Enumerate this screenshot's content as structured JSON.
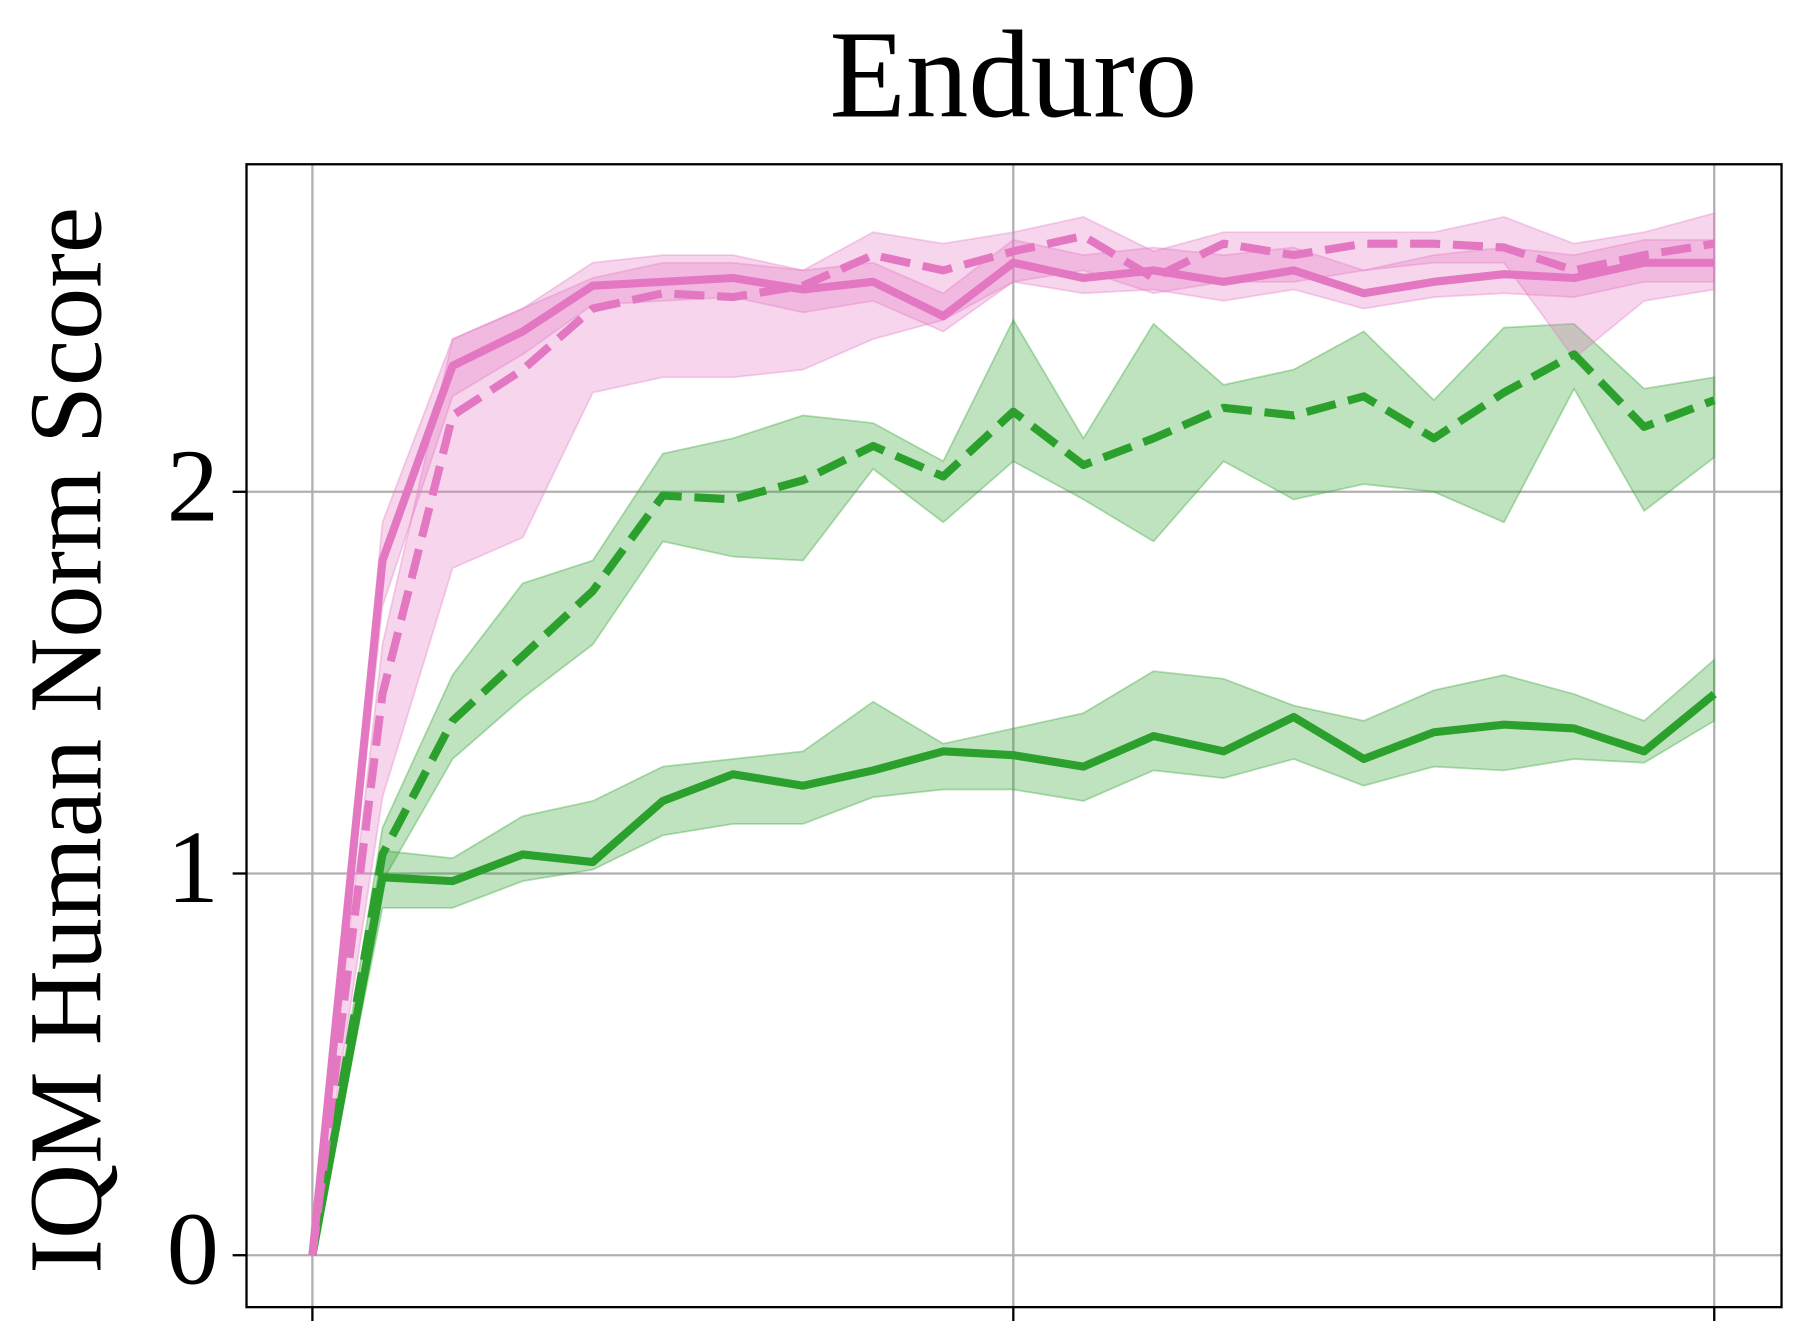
{
  "chart_data": {
    "type": "line",
    "title": "Enduro",
    "y_label": "IQM Human Norm Score",
    "x": [
      0,
      1,
      2,
      3,
      4,
      5,
      6,
      7,
      8,
      9,
      10,
      11,
      12,
      13,
      14,
      15,
      16,
      17,
      18,
      19,
      20
    ],
    "xlim": [
      -0.94,
      20.96
    ],
    "xticks": [
      0,
      10,
      20
    ],
    "ylim": [
      -0.136,
      2.858
    ],
    "yticks": [
      0,
      1,
      2
    ],
    "grid": true,
    "series": [
      {
        "color": "#2ca02c",
        "dashed": false,
        "values": [
          0,
          0.99,
          0.98,
          1.05,
          1.03,
          1.19,
          1.26,
          1.23,
          1.27,
          1.32,
          1.31,
          1.28,
          1.36,
          1.32,
          1.41,
          1.3,
          1.37,
          1.39,
          1.38,
          1.32,
          1.47
        ],
        "lower": [
          0,
          0.91,
          0.91,
          0.98,
          1.01,
          1.1,
          1.13,
          1.13,
          1.2,
          1.22,
          1.22,
          1.19,
          1.27,
          1.25,
          1.3,
          1.23,
          1.28,
          1.27,
          1.3,
          1.29,
          1.4
        ],
        "upper": [
          0,
          1.06,
          1.04,
          1.15,
          1.19,
          1.28,
          1.3,
          1.32,
          1.45,
          1.34,
          1.38,
          1.42,
          1.53,
          1.51,
          1.44,
          1.4,
          1.48,
          1.52,
          1.47,
          1.4,
          1.56
        ]
      },
      {
        "color": "#2ca02c",
        "dashed": true,
        "values": [
          0,
          1.05,
          1.4,
          1.57,
          1.74,
          1.99,
          1.98,
          2.03,
          2.12,
          2.04,
          2.21,
          2.07,
          2.14,
          2.22,
          2.2,
          2.25,
          2.14,
          2.26,
          2.36,
          2.17,
          2.24
        ],
        "lower": [
          0,
          0.98,
          1.3,
          1.46,
          1.6,
          1.87,
          1.83,
          1.82,
          2.06,
          1.92,
          2.08,
          1.98,
          1.87,
          2.08,
          1.98,
          2.02,
          2.0,
          1.92,
          2.27,
          1.95,
          2.09
        ],
        "upper": [
          0,
          1.12,
          1.52,
          1.76,
          1.82,
          2.1,
          2.14,
          2.2,
          2.18,
          2.08,
          2.45,
          2.14,
          2.44,
          2.28,
          2.32,
          2.42,
          2.24,
          2.43,
          2.44,
          2.27,
          2.3
        ]
      },
      {
        "color": "#e377c2",
        "dashed": false,
        "values": [
          0,
          1.82,
          2.33,
          2.42,
          2.54,
          2.55,
          2.56,
          2.53,
          2.55,
          2.46,
          2.6,
          2.56,
          2.58,
          2.55,
          2.58,
          2.52,
          2.55,
          2.57,
          2.56,
          2.6,
          2.6
        ],
        "lower": [
          0,
          1.7,
          2.25,
          2.36,
          2.49,
          2.5,
          2.51,
          2.47,
          2.5,
          2.42,
          2.55,
          2.52,
          2.53,
          2.5,
          2.53,
          2.48,
          2.51,
          2.52,
          2.51,
          2.55,
          2.55
        ],
        "upper": [
          0,
          1.92,
          2.4,
          2.48,
          2.6,
          2.62,
          2.62,
          2.58,
          2.6,
          2.52,
          2.66,
          2.62,
          2.64,
          2.62,
          2.64,
          2.58,
          2.62,
          2.64,
          2.62,
          2.66,
          2.66
        ]
      },
      {
        "color": "#e377c2",
        "dashed": true,
        "values": [
          0,
          1.47,
          2.2,
          2.32,
          2.48,
          2.52,
          2.51,
          2.54,
          2.62,
          2.58,
          2.63,
          2.67,
          2.56,
          2.65,
          2.62,
          2.65,
          2.65,
          2.64,
          2.58,
          2.62,
          2.65
        ],
        "lower": [
          0,
          1.2,
          1.8,
          1.88,
          2.26,
          2.3,
          2.3,
          2.32,
          2.4,
          2.45,
          2.55,
          2.58,
          2.52,
          2.55,
          2.55,
          2.58,
          2.6,
          2.6,
          2.35,
          2.5,
          2.53
        ],
        "upper": [
          0,
          1.6,
          2.4,
          2.48,
          2.56,
          2.6,
          2.6,
          2.58,
          2.68,
          2.65,
          2.68,
          2.72,
          2.63,
          2.68,
          2.68,
          2.68,
          2.68,
          2.72,
          2.65,
          2.68,
          2.73
        ]
      }
    ]
  }
}
